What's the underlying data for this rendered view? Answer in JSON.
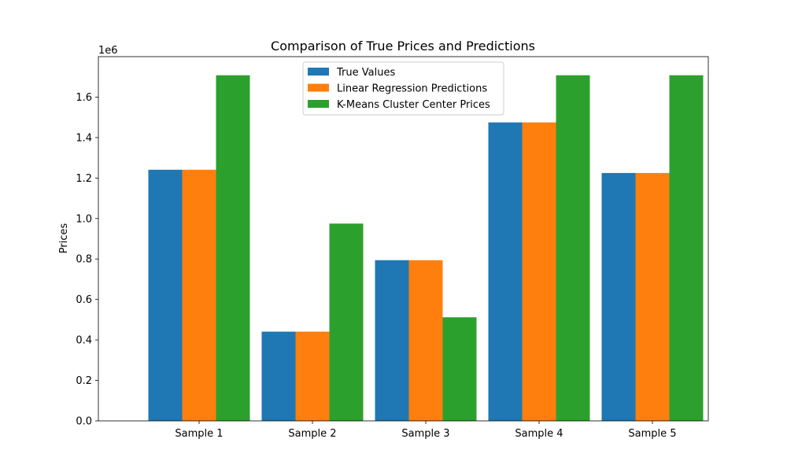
{
  "chart_data": {
    "type": "bar",
    "title": "Comparison of True Prices and Predictions",
    "xlabel": "",
    "ylabel": "Prices",
    "y_scale_label": "1e6",
    "categories": [
      "Sample 1",
      "Sample 2",
      "Sample 3",
      "Sample 4",
      "Sample 5"
    ],
    "series": [
      {
        "name": "True Values",
        "color": "#1f77b4",
        "values": [
          1241000,
          441000,
          794000,
          1475000,
          1225000
        ]
      },
      {
        "name": "Linear Regression Predictions",
        "color": "#ff7f0e",
        "values": [
          1241000,
          441000,
          794000,
          1475000,
          1225000
        ]
      },
      {
        "name": "K-Means Cluster Center Prices",
        "color": "#2ca02c",
        "values": [
          1708000,
          975000,
          512000,
          1708000,
          1708000
        ]
      }
    ],
    "ylim": [
      0,
      1800000
    ],
    "yticks": [
      0,
      200000,
      400000,
      600000,
      800000,
      1000000,
      1200000,
      1400000,
      1600000
    ],
    "ytick_labels": [
      "0.0",
      "0.2",
      "0.4",
      "0.6",
      "0.8",
      "1.0",
      "1.2",
      "1.4",
      "1.6"
    ],
    "grid": false,
    "legend_position": "top-center"
  }
}
